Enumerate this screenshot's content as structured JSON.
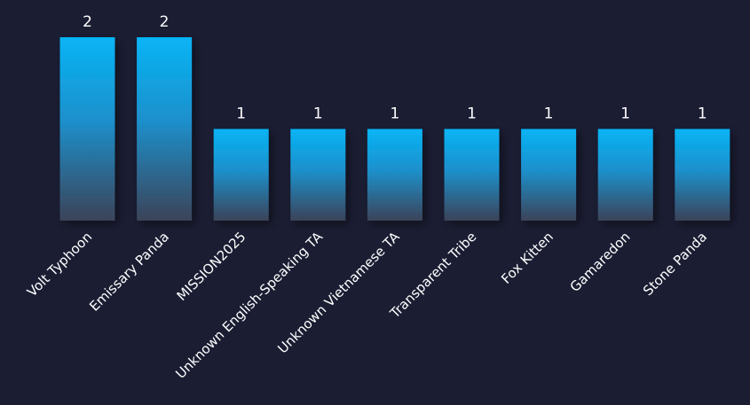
{
  "chart_data": {
    "type": "bar",
    "categories": [
      "Volt Typhoon",
      "Emissary Panda",
      "MISSION2025",
      "Unknown English-Speaking TA",
      "Unknown Vietnamese TA",
      "Transparent Tribe",
      "Fox Kitten",
      "Gamaredon",
      "Stone Panda"
    ],
    "values": [
      2,
      2,
      1,
      1,
      1,
      1,
      1,
      1,
      1
    ],
    "data_labels": [
      "2",
      "2",
      "1",
      "1",
      "1",
      "1",
      "1",
      "1",
      "1"
    ],
    "ylim": [
      0,
      2
    ],
    "grid": false,
    "legend": "none"
  },
  "colors": {
    "background": "#1b1d33",
    "bar_top": "#06b4f5",
    "bar_mid": "#1d90cc",
    "bar_bottom": "#3b4358",
    "text": "#ffffff"
  }
}
